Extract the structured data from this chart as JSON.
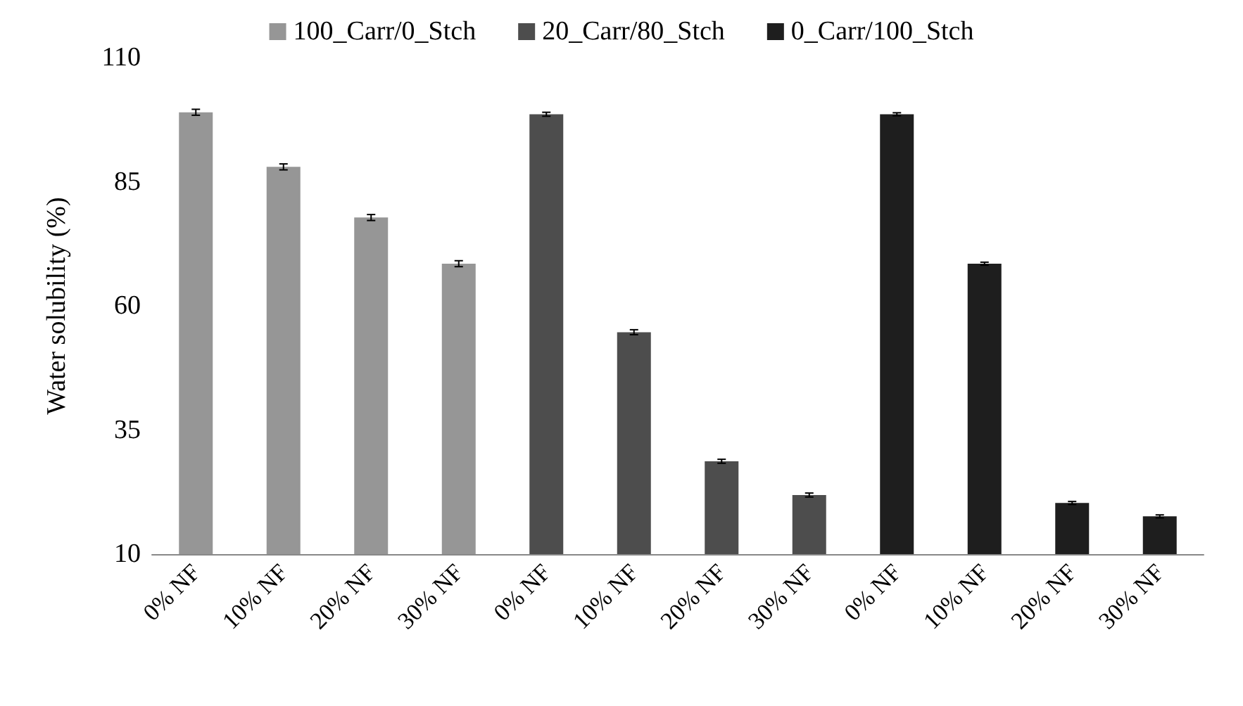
{
  "chart_data": {
    "type": "bar",
    "ylabel": "Water solubility (%)",
    "categories": [
      "0% NF",
      "10% NF",
      "20% NF",
      "30% NF",
      "0% NF",
      "10% NF",
      "20% NF",
      "30% NF",
      "0% NF",
      "10% NF",
      "20% NF",
      "30% NF"
    ],
    "series": [
      {
        "name": "100_Carr/0_Stch",
        "color": "#969696",
        "values": [
          99,
          88,
          77.8,
          68.5,
          null,
          null,
          null,
          null,
          null,
          null,
          null,
          null
        ],
        "errors": [
          0.6,
          0.6,
          0.6,
          0.6,
          null,
          null,
          null,
          null,
          null,
          null,
          null,
          null
        ]
      },
      {
        "name": "20_Carr/80_Stch",
        "color": "#4d4d4d",
        "values": [
          null,
          null,
          null,
          null,
          98.6,
          54.7,
          28.7,
          21.9,
          null,
          null,
          null,
          null
        ],
        "errors": [
          null,
          null,
          null,
          null,
          0.4,
          0.5,
          0.4,
          0.4,
          null,
          null,
          null,
          null
        ]
      },
      {
        "name": "0_Carr/100_Stch",
        "color": "#1e1e1e",
        "values": [
          null,
          null,
          null,
          null,
          null,
          null,
          null,
          null,
          98.6,
          68.5,
          20.3,
          17.6
        ],
        "errors": [
          null,
          null,
          null,
          null,
          null,
          null,
          null,
          null,
          0.3,
          0.3,
          0.3,
          0.3
        ]
      }
    ],
    "ylim": [
      10,
      110
    ],
    "yticks": [
      10,
      35,
      60,
      85,
      110
    ],
    "grid": false,
    "legend": "top"
  }
}
